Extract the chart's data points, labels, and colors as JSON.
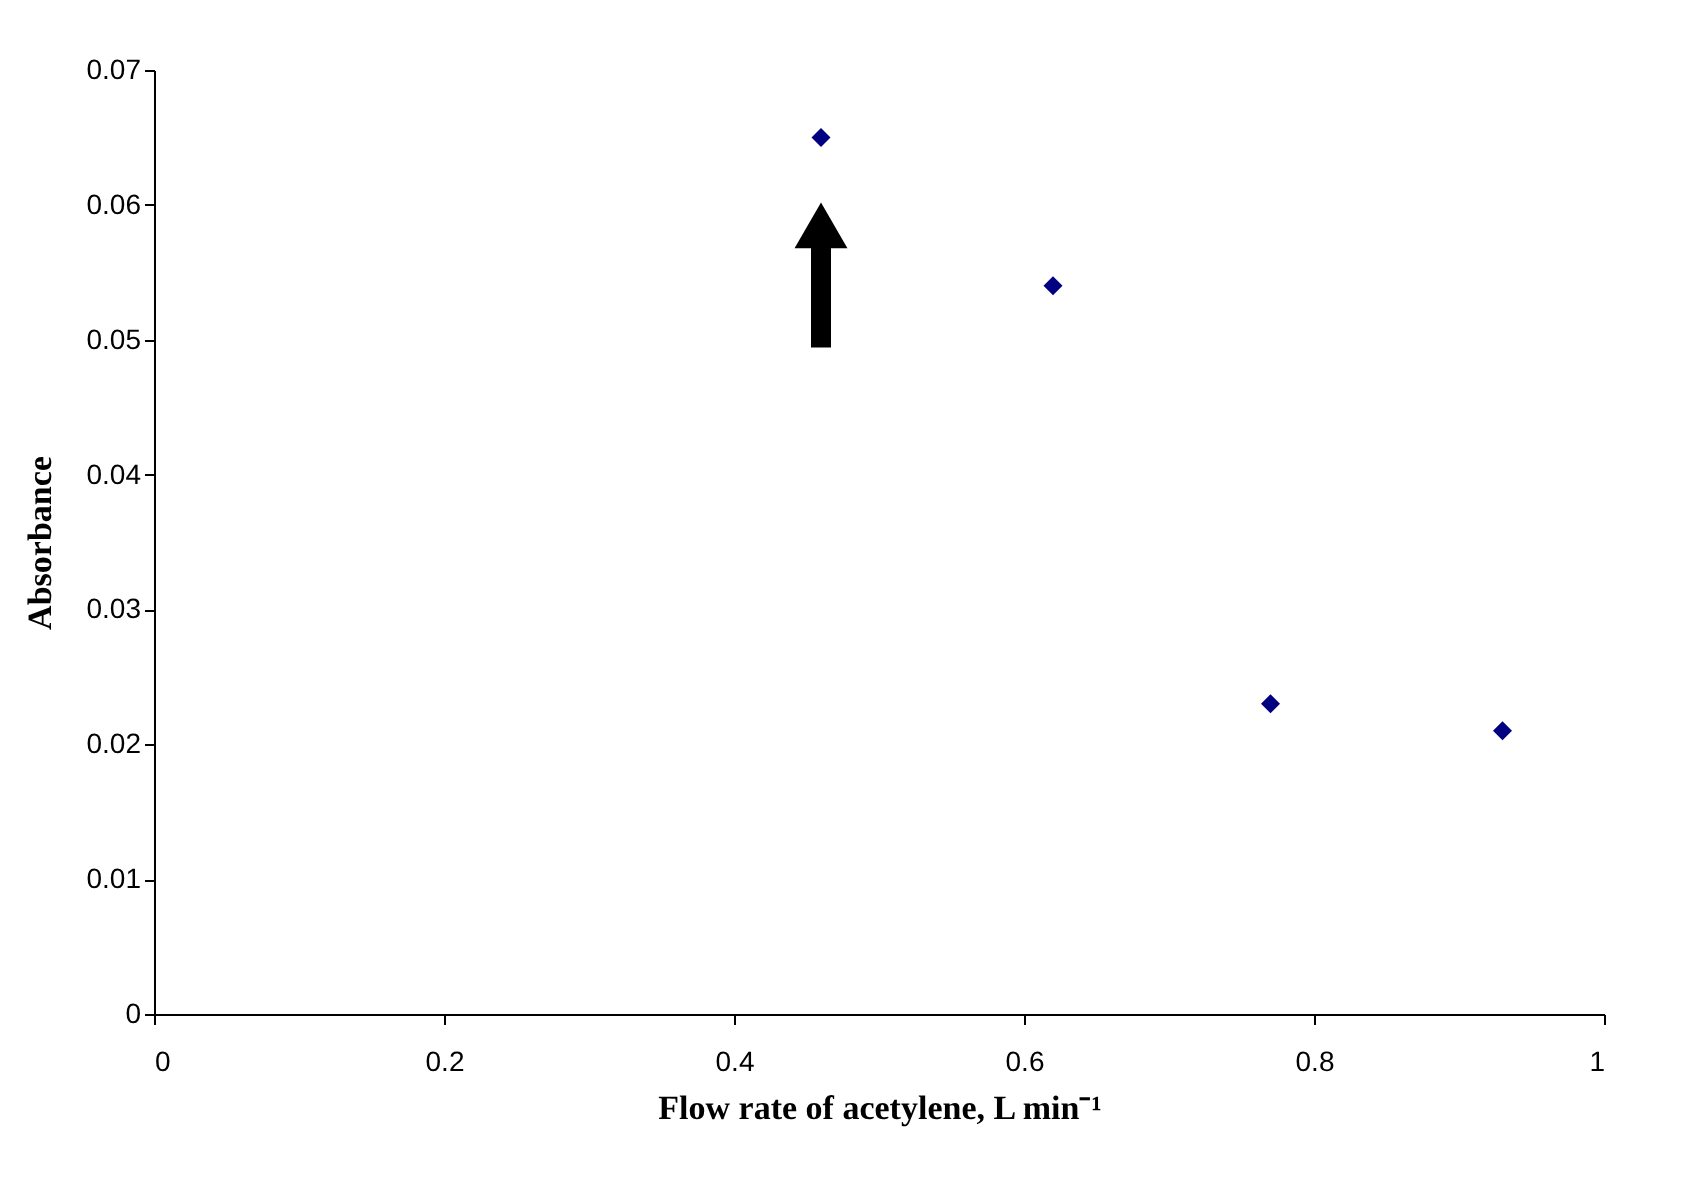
{
  "chart_data": {
    "type": "scatter",
    "xlabel": "Flow rate of acetylene, L min⁻¹",
    "ylabel": "Absorbance",
    "x": [
      0.46,
      0.62,
      0.77,
      0.93
    ],
    "series": [
      {
        "color": "#000080",
        "values": [
          0.065,
          0.054,
          0.023,
          0.021
        ]
      }
    ],
    "xlim": [
      0,
      1
    ],
    "xticks": [
      0,
      0.2,
      0.4,
      0.6,
      0.8,
      1
    ],
    "ylim": [
      0,
      0.07
    ],
    "yticks": [
      0,
      0.01,
      0.02,
      0.03,
      0.04,
      0.05,
      0.06,
      0.07
    ],
    "marker": "diamond",
    "grid": false
  }
}
